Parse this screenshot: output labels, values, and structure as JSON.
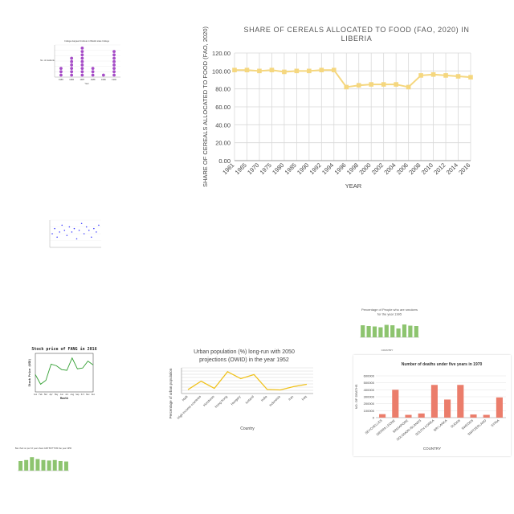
{
  "colors": {
    "yellow": "#f5d77f",
    "purple": "#a64dc7",
    "blue": "#4040ff",
    "green": "#8dc46f",
    "salmon": "#eb7d6b",
    "gold": "#f0c21d",
    "stock_green": "#33a033",
    "grid": "#cccccc"
  },
  "chart_data": [
    {
      "id": "liberia",
      "type": "line",
      "title": "SHARE OF CEREALS ALLOCATED TO FOOD (FAO, 2020)  IN LIBERIA",
      "title_lines": [
        "SHARE OF CEREALS ALLOCATED TO FOOD (FAO, 2020)  IN",
        "LIBERIA"
      ],
      "xlabel": "YEAR",
      "ylabel": "SHARE OF CEREALS ALLOCATED TO FOOD (FAO, 2020)",
      "ylim": [
        0,
        120
      ],
      "yticks": [
        "0.00",
        "20.00",
        "40.00",
        "60.00",
        "80.00",
        "100.00",
        "120.00"
      ],
      "categories": [
        "1961",
        "1965",
        "1970",
        "1975",
        "1980",
        "1985",
        "1990",
        "1992",
        "1994",
        "1996",
        "1998",
        "2000",
        "2002",
        "2004",
        "2006",
        "2008",
        "2010",
        "2012",
        "2014",
        "2016"
      ],
      "values": [
        101,
        101,
        100,
        101,
        99,
        100,
        100,
        101,
        101,
        82,
        84,
        85,
        85,
        85,
        82,
        95,
        96,
        95,
        94,
        93
      ],
      "grid": true
    },
    {
      "id": "college",
      "type": "scatter",
      "title": "College Aargaud Institute in Belelik state College",
      "xlabel": "Year",
      "ylabel": "No. of students",
      "categories": [
        "1985",
        "1986",
        "1987",
        "1988",
        "1989",
        "1990"
      ],
      "values": [
        3,
        6,
        9,
        3,
        1,
        8
      ]
    },
    {
      "id": "scatter_small",
      "type": "scatter",
      "values": [
        0.8,
        1.1,
        0.6,
        0.9,
        1.3,
        1.0,
        0.7,
        1.2,
        0.9,
        1.1,
        0.5,
        1.0,
        1.4,
        0.8,
        1.2,
        1.0,
        0.6,
        1.1,
        0.9,
        1.3
      ]
    },
    {
      "id": "smokers",
      "type": "bar",
      "title": "Percentage of People who are smokers for the year 1995",
      "title_lines": [
        "Percentage of People who are smokers",
        "for the year 1995"
      ],
      "xlabel": "COUNTRY",
      "values": [
        30,
        28,
        27,
        25,
        31,
        30,
        22,
        32,
        29,
        28
      ]
    },
    {
      "id": "stock",
      "type": "line",
      "title": "Stock price of FANG in 2016",
      "xlabel": "Month",
      "ylabel": "Stock Price (USD)",
      "categories": [
        "Jan",
        "Feb",
        "Mar",
        "Apr",
        "May",
        "Jun",
        "Jul",
        "Aug",
        "Sep",
        "Oct",
        "Nov",
        "Dec"
      ],
      "values": [
        45,
        20,
        30,
        72,
        68,
        58,
        56,
        88,
        60,
        62,
        80,
        70
      ]
    },
    {
      "id": "urban",
      "type": "line",
      "title": "Urban population (%) long-run with 2050 projections (OWID) in the year 1952",
      "title_lines": [
        "Urban population (%) long-run with 2050",
        "projections (OWID) in the year 1952"
      ],
      "xlabel": "Country",
      "ylabel": "Percentage of urban population",
      "categories": [
        "Haiti",
        "High-income countries",
        "Honduras",
        "Hong Kong",
        "Hungary",
        "Iceland",
        "India",
        "Indonesia",
        "Iran",
        "Iraq"
      ],
      "values": [
        15,
        48,
        20,
        85,
        58,
        74,
        16,
        14,
        27,
        36
      ],
      "ylim": [
        0,
        100
      ]
    },
    {
      "id": "deaths",
      "type": "bar",
      "title": "Number of deaths under five years in 1970",
      "xlabel": "COUNTRY",
      "ylabel": "NO. OF DEATHS",
      "yticks": [
        "0",
        "100000",
        "200000",
        "300000",
        "400000",
        "500000",
        "600000"
      ],
      "ylim": [
        0,
        600000
      ],
      "categories": [
        "SEYCHELLES",
        "SIERRA LEONE",
        "SINGAPORE",
        "SOLOMON ISLANDS",
        "SOUTH KOREA",
        "SRI LANKA",
        "SUDAN",
        "SWEDEN",
        "SWITZERLAND",
        "SYRIA"
      ],
      "values": [
        50000,
        400000,
        40000,
        60000,
        470000,
        260000,
        470000,
        45000,
        40000,
        290000
      ]
    },
    {
      "id": "bottom_left",
      "type": "bar",
      "title": "Bar chart on per 10 year share GDP BOTTOM line year 1950",
      "values": [
        20,
        22,
        28,
        24,
        22,
        21,
        22,
        20,
        19
      ]
    }
  ]
}
